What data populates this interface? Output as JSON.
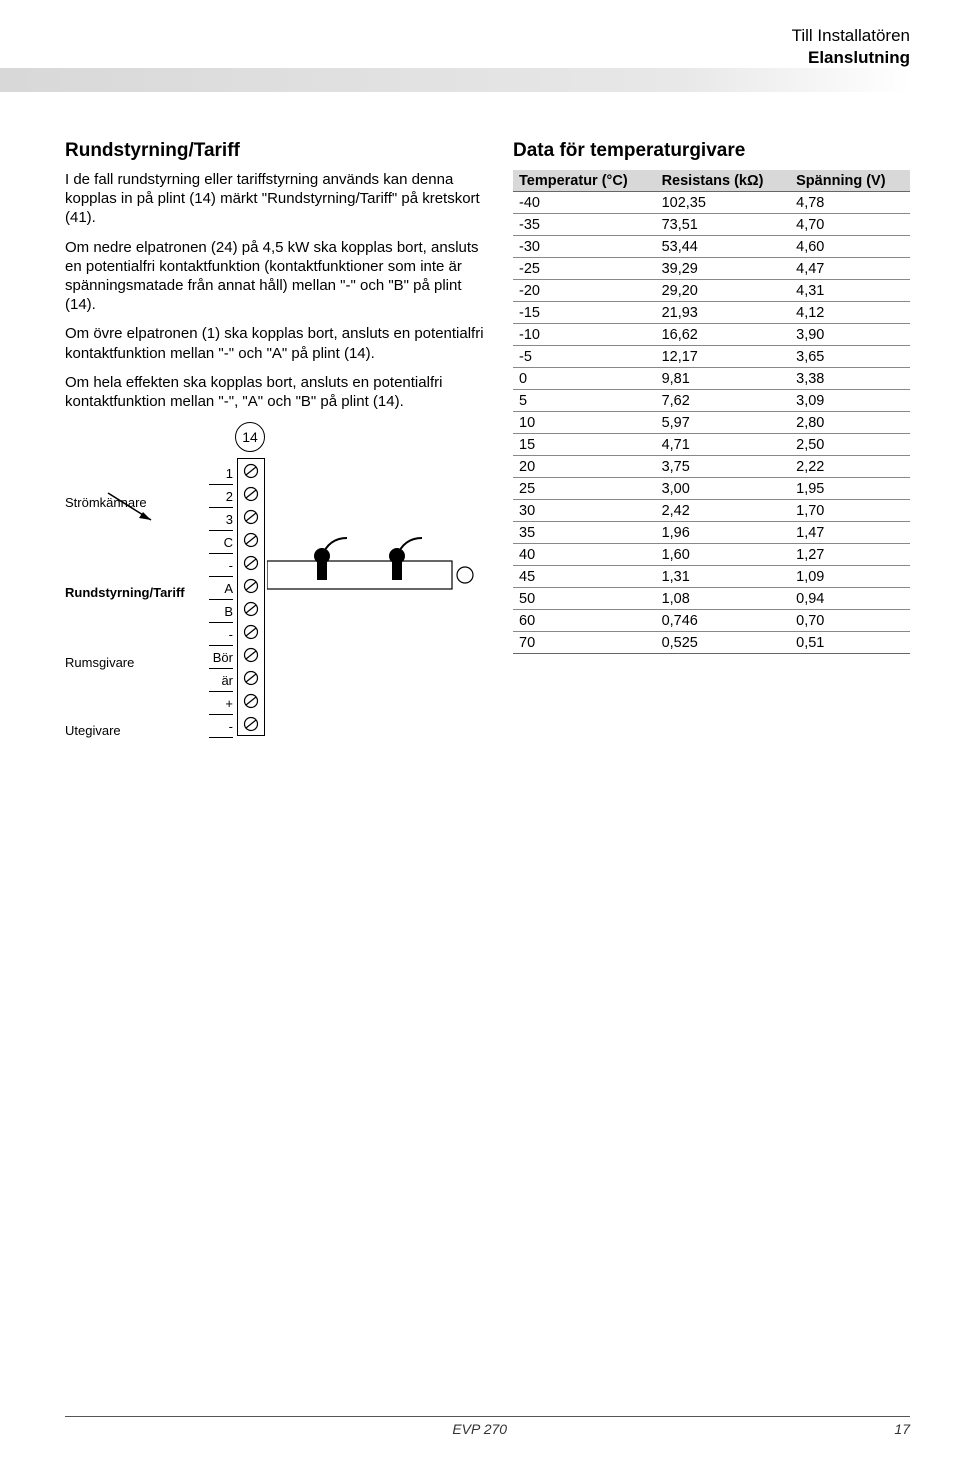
{
  "header": {
    "line1": "Till Installatören",
    "line2": "Elanslutning"
  },
  "left": {
    "heading": "Rundstyrning/Tariff",
    "para1": "I de fall rundstyrning eller tariffstyrning används kan denna kopplas in på plint (14) märkt \"Rundstyrning/Tariff\" på kretskort (41).",
    "para2": "Om nedre elpatronen (24) på 4,5 kW ska kopplas bort, ansluts en potentialfri kontaktfunktion (kontaktfunktioner som inte är spänningsmatade från annat håll) mellan \"-\" och \"B\" på plint (14).",
    "para3": "Om övre elpatronen (1) ska kopplas bort, ansluts en potentialfri kontaktfunktion mellan \"-\" och \"A\" på plint (14).",
    "para4": "Om hela effekten ska kopplas bort, ansluts en potentialfri kontaktfunktion mellan \"-\", \"A\" och \"B\" på plint (14)."
  },
  "diagram": {
    "circle": "14",
    "pins": [
      "1",
      "2",
      "3",
      "C",
      "-",
      "A",
      "B",
      "-",
      "Bör",
      "är",
      "+",
      "-"
    ],
    "labels": {
      "stromkannare": "Strömkännare",
      "rundstyrning": "Rundstyrning/Tariff",
      "rumsgivare": "Rumsgivare",
      "utegivare": "Utegivare"
    }
  },
  "right": {
    "heading": "Data för temperaturgivare",
    "columns": [
      "Temperatur (°C)",
      "Resistans (kΩ)",
      "Spänning (V)"
    ],
    "rows": [
      [
        "-40",
        "102,35",
        "4,78"
      ],
      [
        "-35",
        "73,51",
        "4,70"
      ],
      [
        "-30",
        "53,44",
        "4,60"
      ],
      [
        "-25",
        "39,29",
        "4,47"
      ],
      [
        "-20",
        "29,20",
        "4,31"
      ],
      [
        "-15",
        "21,93",
        "4,12"
      ],
      [
        "-10",
        "16,62",
        "3,90"
      ],
      [
        "-5",
        "12,17",
        "3,65"
      ],
      [
        "0",
        "9,81",
        "3,38"
      ],
      [
        "5",
        "7,62",
        "3,09"
      ],
      [
        "10",
        "5,97",
        "2,80"
      ],
      [
        "15",
        "4,71",
        "2,50"
      ],
      [
        "20",
        "3,75",
        "2,22"
      ],
      [
        "25",
        "3,00",
        "1,95"
      ],
      [
        "30",
        "2,42",
        "1,70"
      ],
      [
        "35",
        "1,96",
        "1,47"
      ],
      [
        "40",
        "1,60",
        "1,27"
      ],
      [
        "45",
        "1,31",
        "1,09"
      ],
      [
        "50",
        "1,08",
        "0,94"
      ],
      [
        "60",
        "0,746",
        "0,70"
      ],
      [
        "70",
        "0,525",
        "0,51"
      ]
    ]
  },
  "footer": {
    "product": "EVP 270",
    "page": "17"
  },
  "colors": {
    "header_bar": "#d8d8d8",
    "table_header_bg": "#d8d8d8",
    "border": "#888888"
  }
}
